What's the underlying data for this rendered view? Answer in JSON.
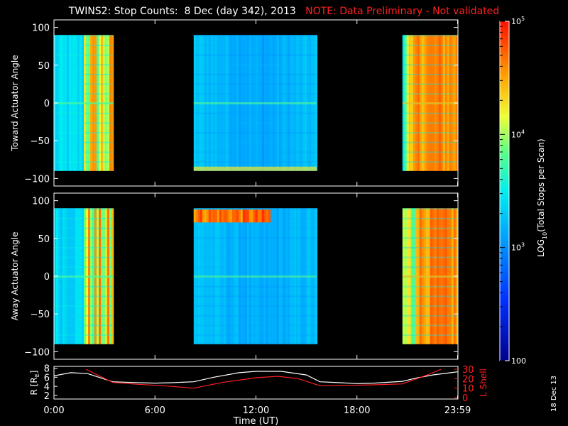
{
  "title": {
    "main": "TWINS2: Stop Counts:  8 Dec (day 342), 2013",
    "note": "NOTE: Data Preliminary - Not validated"
  },
  "stamp": "18 Dec 13",
  "colors": {
    "background": "#000000",
    "axes": "#ffffff",
    "note": "#ff2020",
    "r_line": "#ffffff",
    "lshell_line": "#ff2020"
  },
  "chart_data": [
    {
      "type": "heatmap",
      "panel": "toward",
      "ylabel": "Toward Actuator Angle",
      "ylim": [
        -110,
        110
      ],
      "yticks": [
        100,
        50,
        0,
        -50,
        -100
      ],
      "xlim_hours": [
        0,
        24
      ],
      "data_angle_range": [
        -90,
        90
      ],
      "data_intervals_hours": [
        [
          0.0,
          3.5
        ],
        [
          8.3,
          15.6
        ],
        [
          20.7,
          23.98
        ]
      ],
      "color_scale": "log",
      "notes_values": "counts ~ 10^3 (cyan/blue) mid-interval, ~10^4-10^5 (orange/red) near interval edges"
    },
    {
      "type": "heatmap",
      "panel": "away",
      "ylabel": "Away Actuator Angle",
      "ylim": [
        -110,
        110
      ],
      "yticks": [
        100,
        50,
        0,
        -50,
        -100
      ],
      "xlim_hours": [
        0,
        24
      ],
      "data_angle_range": [
        -90,
        90
      ],
      "data_intervals_hours": [
        [
          0.0,
          3.5
        ],
        [
          8.3,
          15.6
        ],
        [
          20.7,
          23.98
        ]
      ],
      "color_scale": "log"
    },
    {
      "type": "line",
      "panel": "ephemeris",
      "xlabel": "Time (UT)",
      "xticks": [
        "0:00",
        "6:00",
        "12:00",
        "18:00",
        "23:59"
      ],
      "xtick_hours": [
        0,
        6,
        12,
        18,
        23.98
      ],
      "left_axis": {
        "label": "R [R",
        "label_sub": "E",
        "label_end": "]",
        "yticks": [
          "8",
          "6",
          "4",
          "2"
        ],
        "ylim": [
          1.2,
          8.4
        ]
      },
      "right_axis": {
        "label": "L Shell",
        "yticks": [
          "30",
          "20",
          "10",
          "0"
        ],
        "ylim": [
          0,
          30
        ]
      },
      "series": [
        {
          "axis": "left",
          "color": "#ffffff",
          "x": [
            0,
            1,
            2,
            3,
            3.5,
            5,
            6,
            7,
            8.3,
            9.5,
            11,
            12,
            13.5,
            15,
            15.8,
            17,
            18,
            19,
            20.7,
            21.5,
            22.5,
            23.98
          ],
          "y": [
            6.3,
            7.0,
            6.8,
            5.6,
            5.0,
            4.8,
            4.7,
            4.8,
            5.0,
            6.0,
            7.0,
            7.3,
            7.3,
            6.5,
            5.0,
            4.8,
            4.6,
            4.7,
            5.1,
            5.8,
            6.5,
            7.2
          ]
        },
        {
          "axis": "right",
          "color": "#ff2020",
          "x": [
            1.9,
            2.8,
            3.5,
            5,
            6.5,
            8.3,
            10,
            12,
            13.3,
            14.5,
            15.8,
            17.5,
            19,
            20.7,
            22.2,
            23.0
          ],
          "y": [
            30,
            22,
            16,
            14,
            12.5,
            10,
            16,
            21,
            22.5,
            20,
            12.5,
            13,
            13.5,
            14.5,
            24,
            30
          ]
        }
      ]
    }
  ],
  "colorbar": {
    "label": "LOG",
    "label_sub": "10",
    "label_rest": "(Total Stops per Scan)",
    "tick_labels": [
      {
        "base": "10",
        "exp": "5",
        "value": 100000
      },
      {
        "base": "10",
        "exp": "4",
        "value": 10000
      },
      {
        "base": "10",
        "exp": "3",
        "value": 1000
      },
      {
        "base": "100",
        "exp": "",
        "value": 100
      }
    ],
    "range": [
      100,
      100000
    ]
  }
}
